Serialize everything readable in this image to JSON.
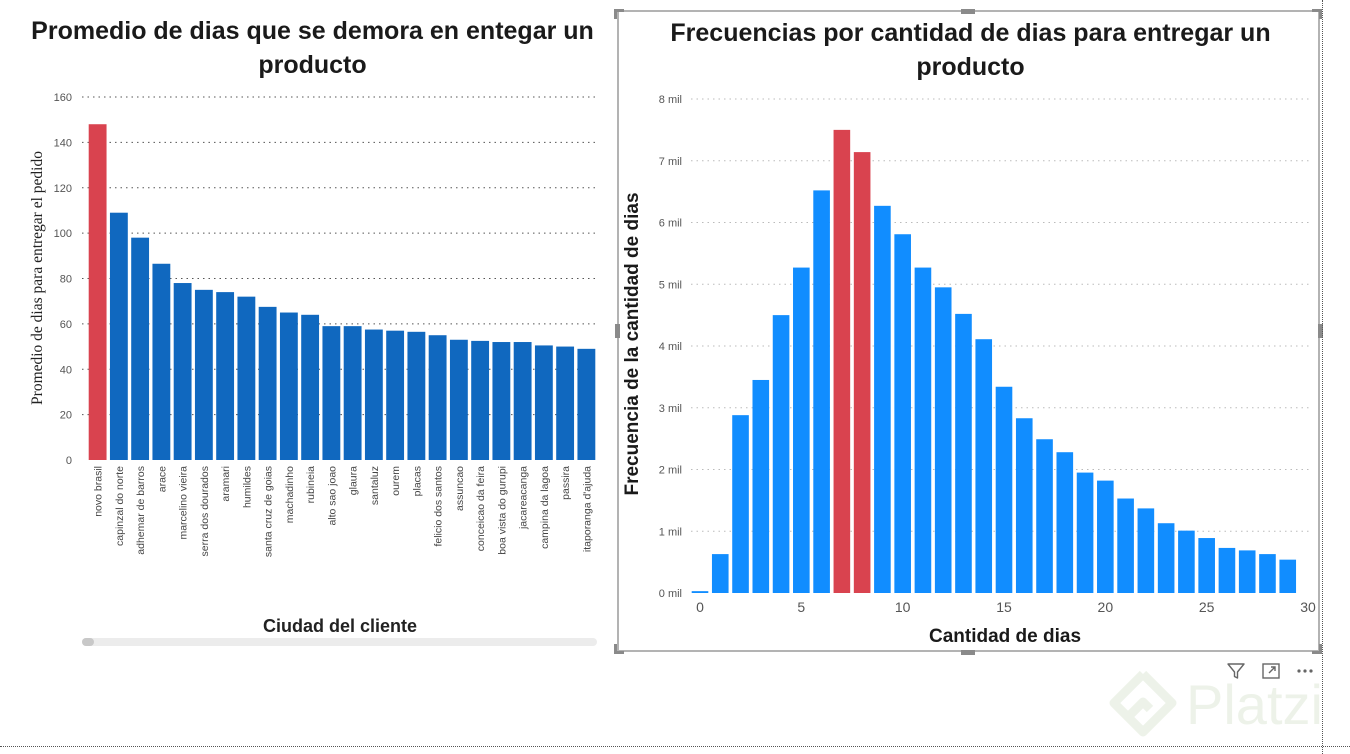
{
  "chart_data": [
    {
      "type": "bar",
      "title": "Promedio de dias que se demora en entegar un producto",
      "xlabel": "Ciudad del cliente",
      "ylabel": "Promedio de dias para entregar el pedido",
      "ylim": [
        0,
        160
      ],
      "yticks": [
        "0",
        "20",
        "40",
        "60",
        "80",
        "100",
        "120",
        "140",
        "160"
      ],
      "grid": true,
      "categories": [
        "novo brasil",
        "capinzal do norte",
        "adhemar de barros",
        "arace",
        "marcelino vieira",
        "serra dos dourados",
        "aramari",
        "humildes",
        "santa cruz de goias",
        "machadinho",
        "rubineia",
        "alto sao joao",
        "glaura",
        "santaluz",
        "ourem",
        "placas",
        "felicio dos santos",
        "assuncao",
        "conceicao da feira",
        "boa vista do gurupi",
        "jacareacanga",
        "campina da lagoa",
        "passira",
        "itaporanga d'ajuda"
      ],
      "values": [
        148,
        109,
        98,
        86.5,
        78,
        75,
        74,
        72,
        67.5,
        65,
        64,
        59,
        59,
        57.5,
        57,
        56.5,
        55,
        53,
        52.5,
        52,
        52,
        50.5,
        50,
        49
      ],
      "highlight_index": [
        0
      ],
      "colors": {
        "bar": "#1068bf",
        "highlight": "#d9434f"
      }
    },
    {
      "type": "bar",
      "title": "Frecuencias por cantidad de dias para entregar un producto",
      "xlabel": "Cantidad de dias",
      "ylabel": "Frecuencia de la cantidad de dias",
      "xlim": [
        0,
        30
      ],
      "ylim": [
        0,
        8000
      ],
      "xticks": [
        "0",
        "5",
        "10",
        "15",
        "20",
        "25",
        "30"
      ],
      "yticks": [
        "0 mil",
        "1 mil",
        "2 mil",
        "3 mil",
        "4 mil",
        "5 mil",
        "6 mil",
        "7 mil",
        "8 mil"
      ],
      "grid": true,
      "x": [
        0,
        1,
        2,
        3,
        4,
        5,
        6,
        7,
        8,
        9,
        10,
        11,
        12,
        13,
        14,
        15,
        16,
        17,
        18,
        19,
        20,
        21,
        22,
        23,
        24,
        25,
        26,
        27,
        28,
        29
      ],
      "values": [
        30,
        630,
        2880,
        3450,
        4500,
        5270,
        6520,
        7500,
        7140,
        6270,
        5810,
        5270,
        4950,
        4520,
        4110,
        3340,
        2830,
        2490,
        2280,
        1950,
        1820,
        1530,
        1370,
        1130,
        1010,
        890,
        730,
        690,
        630,
        540
      ],
      "highlight_index": [
        7,
        8
      ],
      "colors": {
        "bar": "#118dff",
        "highlight": "#d9434f"
      }
    }
  ],
  "visual_actions": {
    "filter_icon": "filter-icon",
    "focus_icon": "focus-mode-icon",
    "more_icon": "more-options-icon"
  },
  "watermark": {
    "text": "Platzi"
  }
}
